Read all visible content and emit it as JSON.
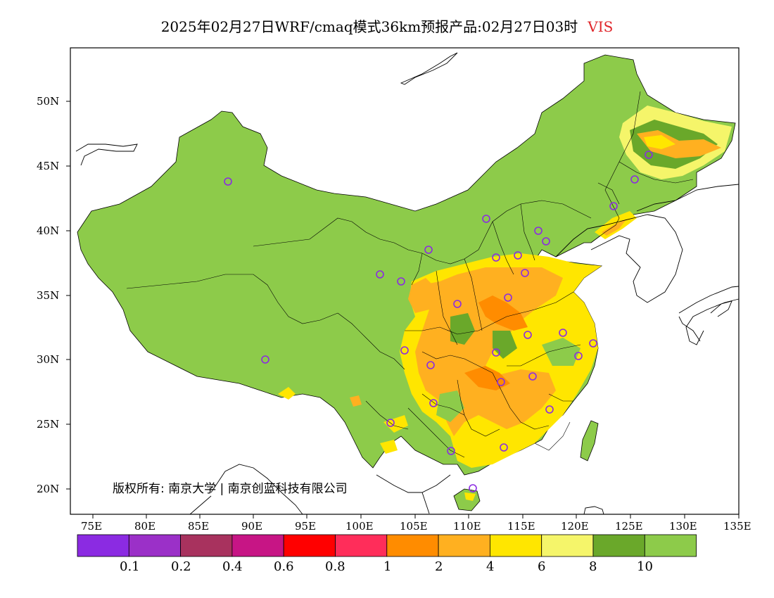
{
  "title": {
    "main": "2025年02月27日WRF/cmaq模式36km预报产品:02月27日03时",
    "variable": "VIS"
  },
  "axes": {
    "lat_labels": [
      "50N",
      "45N",
      "40N",
      "35N",
      "30N",
      "25N",
      "20N"
    ],
    "lon_labels": [
      "75E",
      "80E",
      "85E",
      "90E",
      "95E",
      "100E",
      "105E",
      "110E",
      "115E",
      "120E",
      "125E",
      "130E",
      "135E"
    ]
  },
  "colorbar": {
    "colors": [
      "#8b2be2",
      "#9b30c8",
      "#a8325e",
      "#c71585",
      "#ff0000",
      "#ff2d5a",
      "#ff8c00",
      "#ffb020",
      "#ffe600",
      "#f5f56a",
      "#6aa82a",
      "#8dcb4a"
    ],
    "labels": [
      "0.1",
      "0.2",
      "0.4",
      "0.6",
      "0.8",
      "1",
      "2",
      "4",
      "6",
      "8",
      "10"
    ]
  },
  "copyright": "版权所有: 南京大学 | 南京创蓝科技有限公司",
  "legend_colors": {
    "good": "#8dcb4a",
    "dark_green": "#6aa82a",
    "light_yellow": "#f5f56a",
    "yellow": "#ffe600",
    "orange": "#ffb020",
    "dark_orange": "#ff8c00",
    "station_marker": "#8b2be2"
  }
}
